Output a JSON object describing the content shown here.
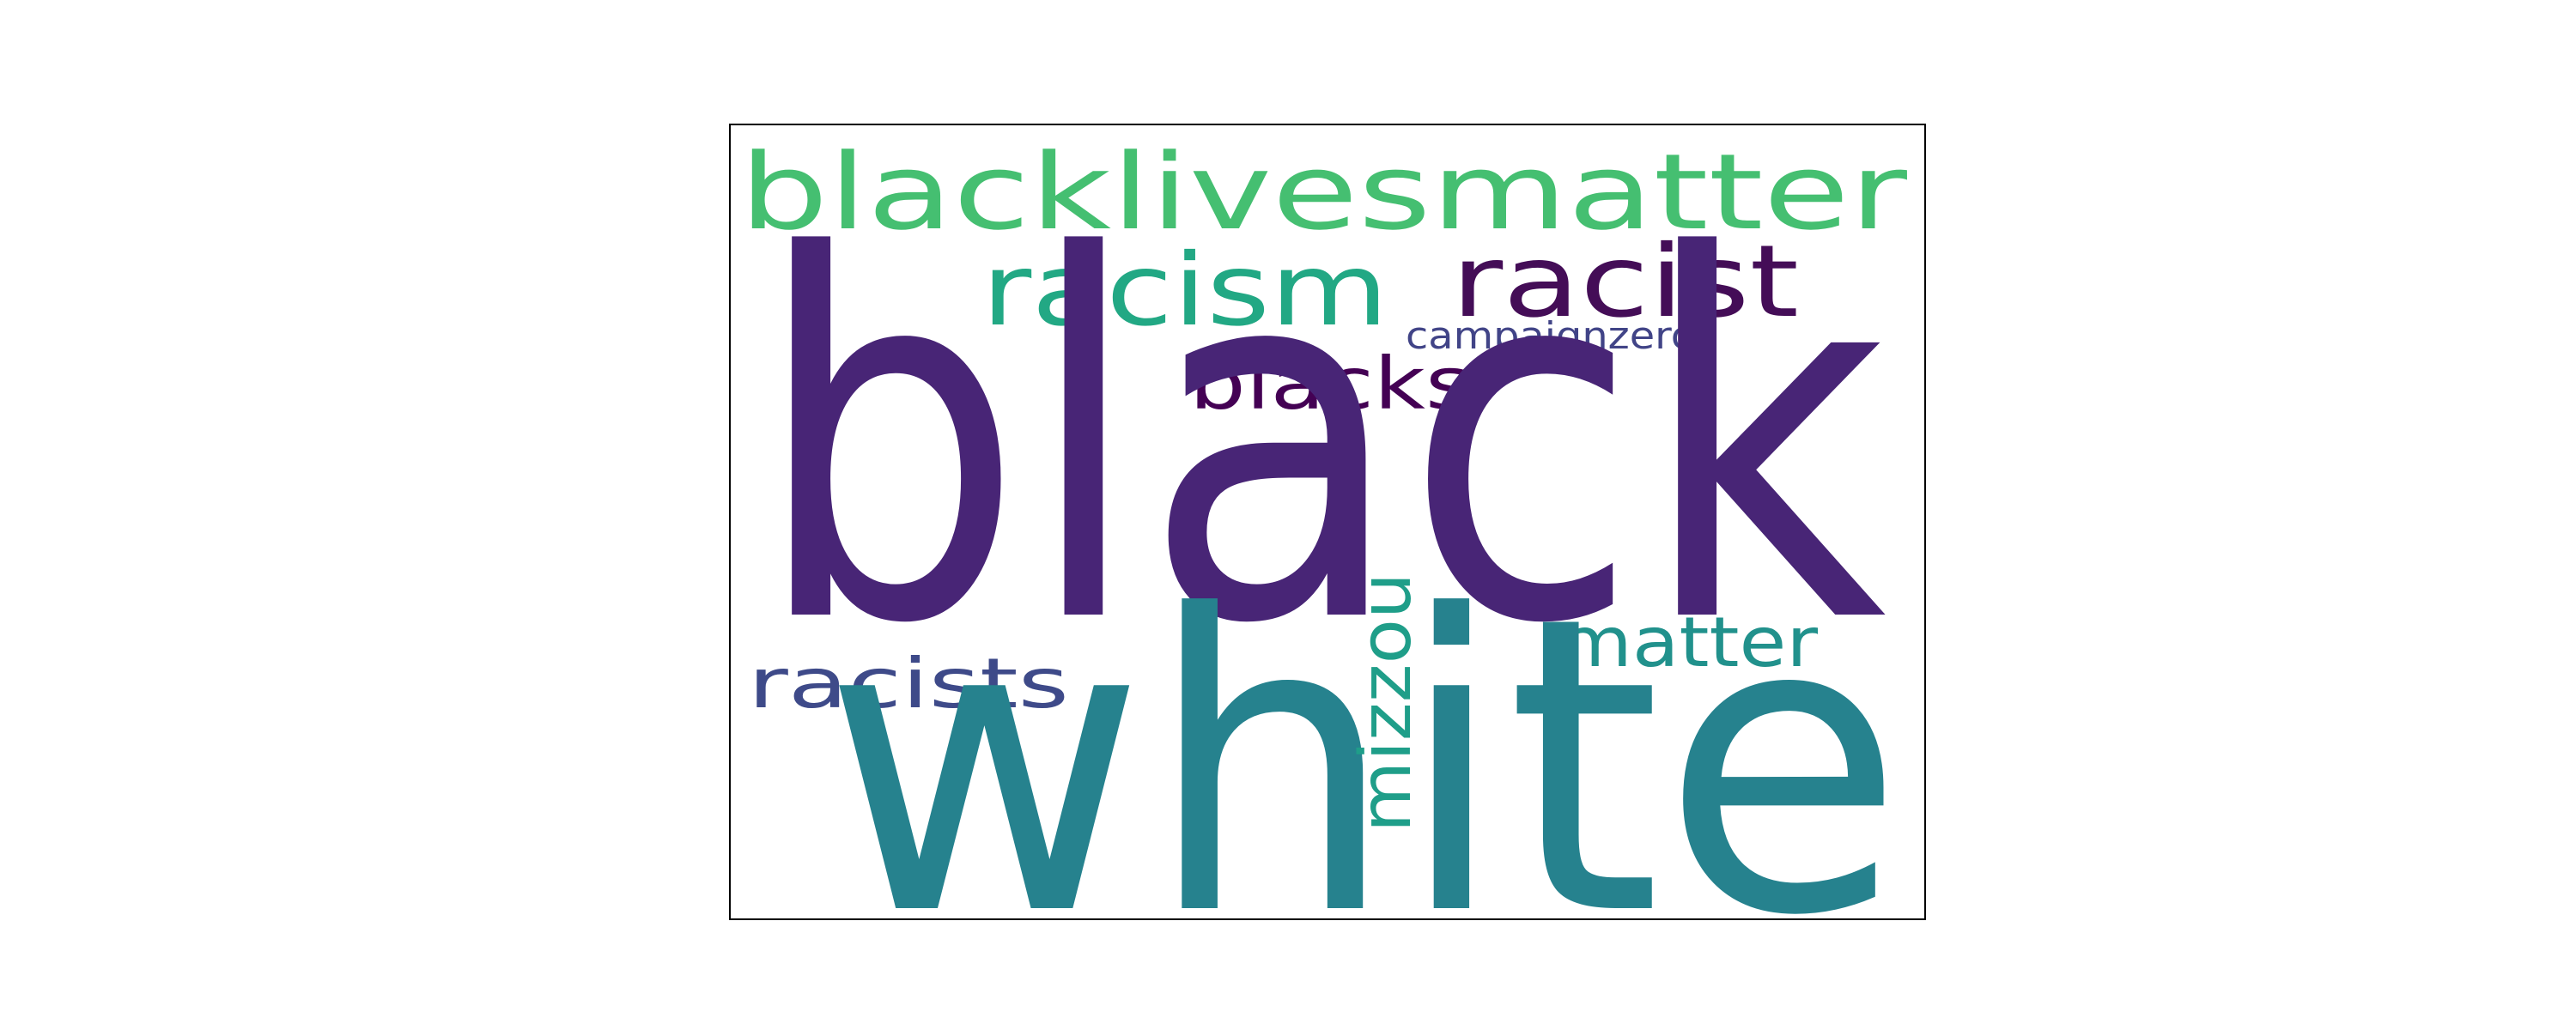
{
  "word_cloud": {
    "words": [
      {
        "key": "blacklivesmatter",
        "text": "blacklivesmatter",
        "color": "#45bf71"
      },
      {
        "key": "racism",
        "text": "racism",
        "color": "#22a884"
      },
      {
        "key": "racist",
        "text": "racist",
        "color": "#440d57"
      },
      {
        "key": "campaignzero",
        "text": "campaignzero",
        "color": "#414487"
      },
      {
        "key": "blacks",
        "text": "blacks",
        "color": "#440154"
      },
      {
        "key": "black",
        "text": "black",
        "color": "#482576"
      },
      {
        "key": "mizzou",
        "text": "mizzou",
        "color": "#1f9e89"
      },
      {
        "key": "matter",
        "text": "matter",
        "color": "#21918c"
      },
      {
        "key": "racists",
        "text": "racists",
        "color": "#3e4a89"
      },
      {
        "key": "white",
        "text": "white",
        "color": "#26828e"
      }
    ]
  }
}
